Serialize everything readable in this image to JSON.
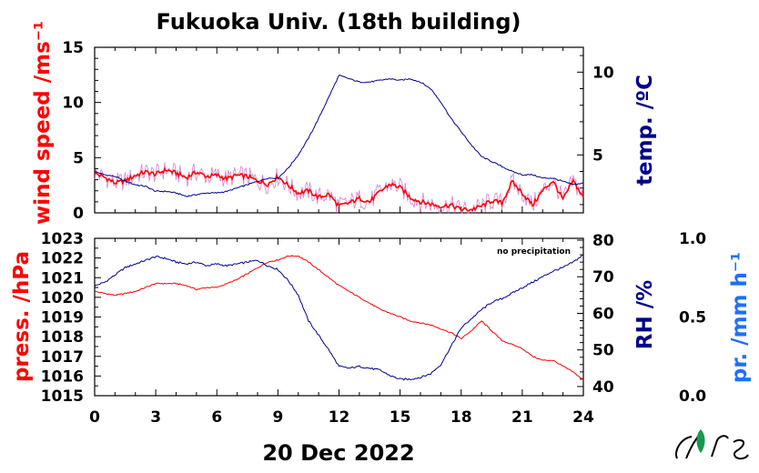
{
  "chart_data": [
    {
      "type": "line",
      "title": "Fukuoka Univ. (18th building)",
      "ylabel_left": "wind speed /ms⁻¹",
      "ylabel_right": "temp. /ºC",
      "ylim_left": [
        0,
        15
      ],
      "ylim_right": [
        1.5,
        11.5
      ],
      "yticks_left": [
        "0",
        "5",
        "10",
        "15"
      ],
      "yticks_right": [
        "5",
        "10"
      ],
      "xlim": [
        0,
        24
      ],
      "colors": {
        "wind": "#ff0000",
        "wind_raw": "#cc66cc",
        "temp": "#00008b"
      },
      "series": [
        {
          "axis": "left",
          "x": [
            0,
            0.5,
            1,
            1.5,
            2,
            2.5,
            3,
            3.5,
            4,
            4.5,
            5,
            5.5,
            6,
            6.5,
            7,
            7.5,
            8,
            8.5,
            9,
            9.5,
            10,
            10.5,
            11,
            11.5,
            12,
            12.5,
            13,
            13.5,
            14,
            14.5,
            15,
            15.5,
            16,
            16.5,
            17,
            17.5,
            18,
            18.5,
            19,
            19.5,
            20,
            20.5,
            21,
            21.5,
            22,
            22.5,
            23,
            23.5,
            24
          ],
          "values": [
            3.6,
            3.2,
            2.7,
            2.9,
            3.4,
            3.7,
            3.5,
            3.9,
            3.6,
            3.2,
            3.7,
            3.3,
            3.4,
            3.1,
            3.4,
            3.3,
            2.9,
            2.6,
            3.3,
            2.5,
            1.8,
            2.0,
            1.4,
            1.7,
            0.6,
            0.9,
            1.3,
            1.0,
            1.9,
            2.6,
            2.3,
            1.4,
            1.0,
            0.8,
            0.6,
            0.7,
            0.3,
            0.3,
            0.6,
            1.1,
            0.9,
            2.8,
            1.8,
            0.7,
            2.0,
            2.9,
            1.2,
            2.9,
            1.4
          ]
        },
        {
          "axis": "right",
          "x": [
            0,
            0.5,
            1,
            1.5,
            2,
            2.5,
            3,
            3.5,
            4,
            4.5,
            5,
            5.5,
            6,
            6.5,
            7,
            7.5,
            8,
            8.5,
            9,
            9.5,
            10,
            10.5,
            11,
            11.5,
            12,
            12.5,
            13,
            13.5,
            14,
            14.5,
            15,
            15.5,
            16,
            16.5,
            17,
            17.5,
            18,
            18.5,
            19,
            19.5,
            20,
            20.5,
            21,
            21.5,
            22,
            22.5,
            23,
            23.5,
            24
          ],
          "values": [
            4.0,
            3.8,
            3.7,
            3.4,
            3.2,
            3.1,
            2.8,
            2.8,
            2.7,
            2.5,
            2.6,
            2.7,
            2.7,
            2.8,
            3.0,
            3.2,
            3.4,
            3.6,
            3.6,
            4.2,
            5.0,
            6.0,
            7.2,
            8.5,
            9.8,
            9.6,
            9.4,
            9.4,
            9.5,
            9.6,
            9.5,
            9.6,
            9.4,
            9.0,
            8.2,
            7.2,
            6.4,
            5.6,
            4.9,
            4.6,
            4.3,
            4.0,
            3.8,
            3.8,
            3.6,
            3.6,
            3.4,
            3.2,
            3.3
          ]
        }
      ]
    },
    {
      "type": "line",
      "ylabel_left": "press. /hPa",
      "ylabel_right": "RH /%",
      "ylabel_far_right": "pr. /mm h⁻¹",
      "ylim_left": [
        1015,
        1023
      ],
      "ylim_right": [
        37.5,
        80.5
      ],
      "ylim_far_right": [
        0.0,
        1.0
      ],
      "yticks_left": [
        "1015",
        "1016",
        "1017",
        "1018",
        "1019",
        "1020",
        "1021",
        "1022",
        "1023"
      ],
      "yticks_right": [
        "40",
        "50",
        "60",
        "70",
        "80"
      ],
      "yticks_far_right": [
        "0.0",
        "0.5",
        "1.0"
      ],
      "annotation": "no precipitation",
      "xlabel": "20 Dec 2022",
      "xticks": [
        "0",
        "3",
        "6",
        "9",
        "12",
        "15",
        "18",
        "21",
        "24"
      ],
      "xlim": [
        0,
        24
      ],
      "colors": {
        "pressure": "#ff0000",
        "rh": "#00008b",
        "precip_axis": "#1e6fff"
      },
      "series": [
        {
          "axis": "left",
          "x": [
            0,
            0.5,
            1,
            1.5,
            2,
            2.5,
            3,
            3.5,
            4,
            4.5,
            5,
            5.5,
            6,
            6.5,
            7,
            7.5,
            8,
            8.5,
            9,
            9.5,
            10,
            10.5,
            11,
            11.5,
            12,
            12.5,
            13,
            13.5,
            14,
            14.5,
            15,
            15.5,
            16,
            16.5,
            17,
            17.5,
            18,
            18.5,
            19,
            19.5,
            20,
            20.5,
            21,
            21.5,
            22,
            22.5,
            23,
            23.5,
            24
          ],
          "values": [
            1020.3,
            1020.2,
            1020.1,
            1020.2,
            1020.3,
            1020.5,
            1020.7,
            1020.7,
            1020.7,
            1020.6,
            1020.4,
            1020.5,
            1020.5,
            1020.7,
            1020.9,
            1021.2,
            1021.5,
            1021.8,
            1021.9,
            1022.1,
            1022.1,
            1021.8,
            1021.4,
            1021.0,
            1020.6,
            1020.3,
            1020.0,
            1019.7,
            1019.4,
            1019.2,
            1019.0,
            1018.8,
            1018.7,
            1018.6,
            1018.4,
            1018.2,
            1017.9,
            1018.3,
            1018.8,
            1018.3,
            1017.8,
            1017.6,
            1017.4,
            1017.0,
            1016.8,
            1016.8,
            1016.5,
            1016.2,
            1015.8
          ]
        },
        {
          "axis": "right",
          "x": [
            0,
            0.5,
            1,
            1.5,
            2,
            2.5,
            3,
            3.5,
            4,
            4.5,
            5,
            5.5,
            6,
            6.5,
            7,
            7.5,
            8,
            8.5,
            9,
            9.5,
            10,
            10.5,
            11,
            11.5,
            12,
            12.5,
            13,
            13.5,
            14,
            14.5,
            15,
            15.5,
            16,
            16.5,
            17,
            17.5,
            18,
            18.5,
            19,
            19.5,
            20,
            20.5,
            21,
            21.5,
            22,
            22.5,
            23,
            23.5,
            24
          ],
          "values": [
            67.5,
            68.5,
            70.5,
            72.5,
            73.5,
            74.5,
            75.5,
            75.0,
            74.0,
            73.5,
            74.0,
            73.0,
            73.5,
            73.0,
            73.5,
            74.0,
            74.5,
            73.0,
            72.0,
            69.0,
            65.0,
            58.0,
            54.0,
            50.0,
            45.5,
            45.0,
            45.5,
            45.0,
            44.5,
            43.0,
            42.0,
            42.0,
            42.5,
            43.5,
            46.0,
            51.0,
            56.0,
            58.5,
            61.0,
            63.0,
            64.0,
            65.5,
            67.0,
            68.5,
            70.0,
            71.5,
            72.5,
            74.0,
            76.0
          ]
        }
      ]
    }
  ]
}
